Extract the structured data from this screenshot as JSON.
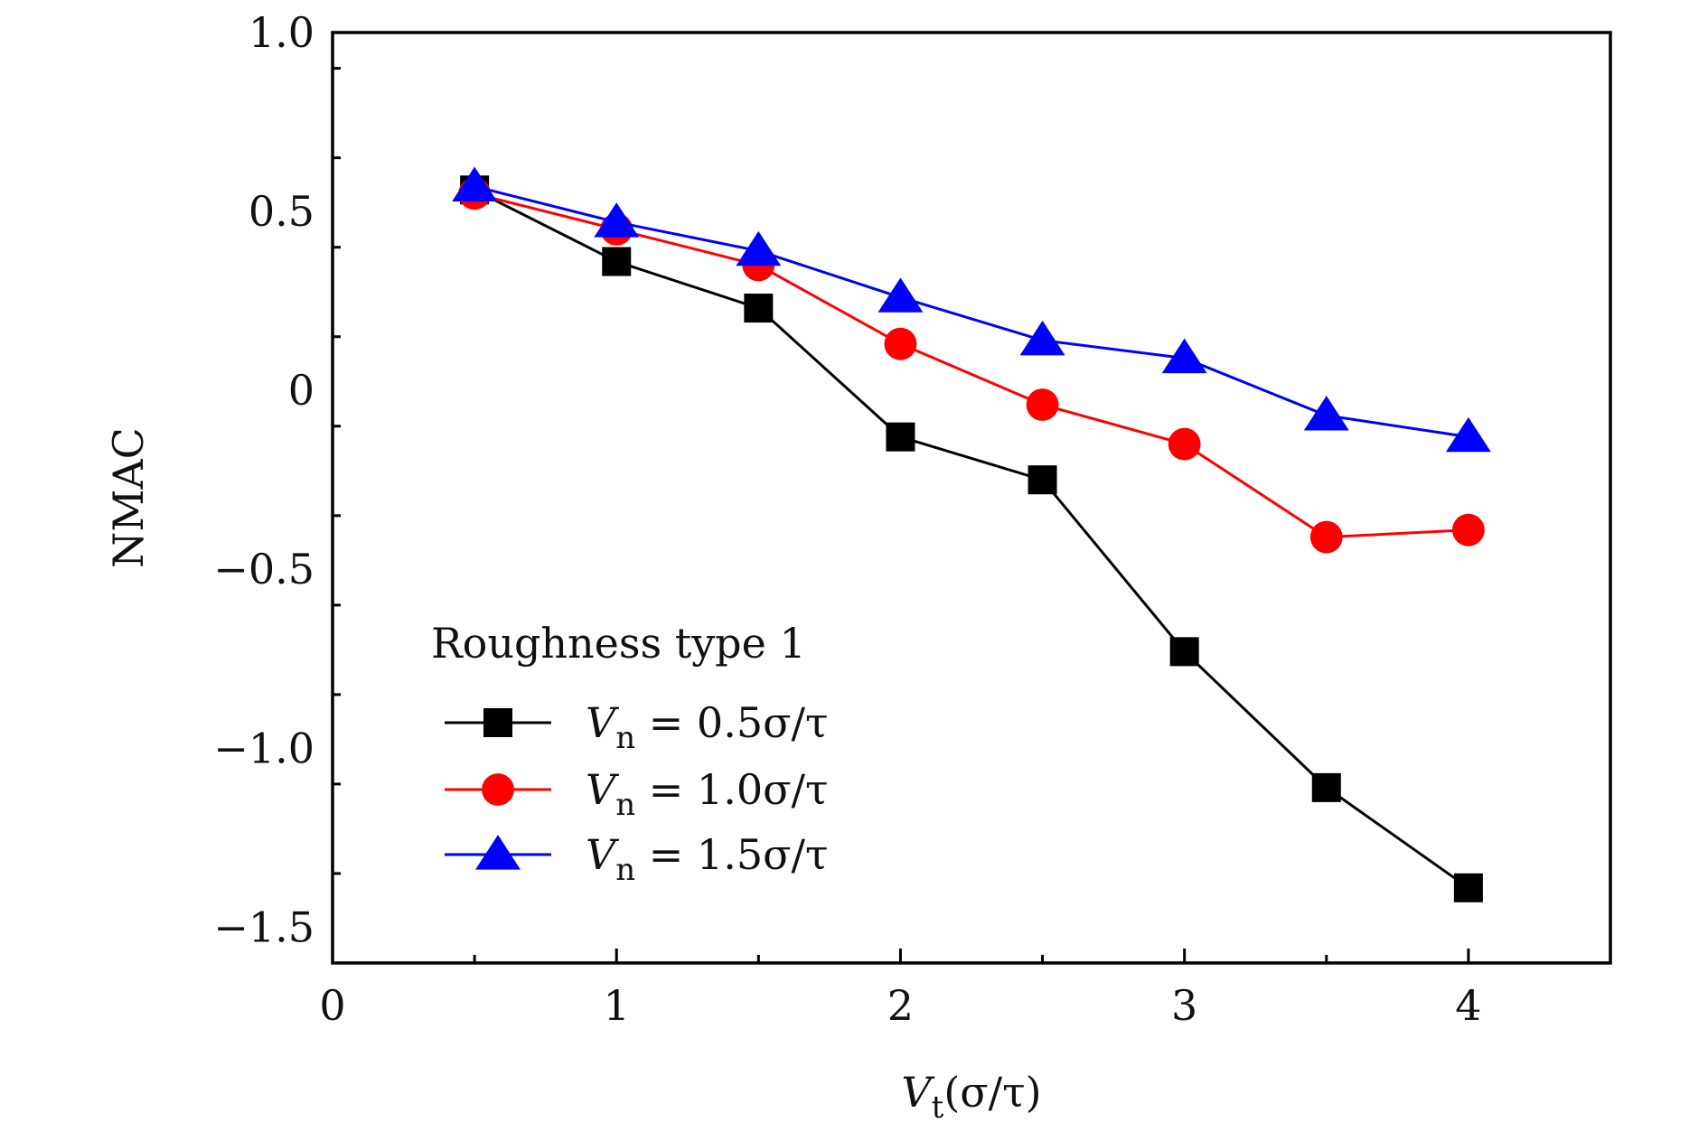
{
  "chart_data": {
    "type": "line",
    "title": "",
    "x_label": {
      "main": "V",
      "sub": "t",
      "rest": "(σ/τ)"
    },
    "y_label": "NMAC",
    "xlim": [
      0,
      4.5
    ],
    "ylim": [
      -1.6,
      1.0
    ],
    "x_ticks": [
      0,
      1,
      2,
      3,
      4
    ],
    "x_tick_labels": [
      "0",
      "1",
      "2",
      "3",
      "4"
    ],
    "y_ticks": [
      -1.5,
      -1.0,
      -0.5,
      0,
      0.5,
      1.0
    ],
    "y_tick_labels": [
      "−1.5",
      "−1.0",
      "−0.5",
      "0",
      "0.5",
      "1.0"
    ],
    "x_minor_step": 0.5,
    "y_minor_step": 0.25,
    "grid": false,
    "legend_title": "Roughness type 1",
    "legend_position": "lower-left",
    "x": [
      0.5,
      1.0,
      1.5,
      2.0,
      2.5,
      3.0,
      3.5,
      4.0
    ],
    "series": [
      {
        "name": {
          "main": "V",
          "sub": "n",
          "rest": " = 0.5σ/τ"
        },
        "marker": "square",
        "color": "#000000",
        "values": [
          0.56,
          0.36,
          0.23,
          -0.13,
          -0.25,
          -0.73,
          -1.11,
          -1.39
        ]
      },
      {
        "name": {
          "main": "V",
          "sub": "n",
          "rest": " = 1.0σ/τ"
        },
        "marker": "circle",
        "color": "#ff0000",
        "values": [
          0.55,
          0.45,
          0.35,
          0.13,
          -0.04,
          -0.15,
          -0.41,
          -0.39
        ]
      },
      {
        "name": {
          "main": "V",
          "sub": "n",
          "rest": " = 1.5σ/τ"
        },
        "marker": "triangle",
        "color": "#0000ff",
        "values": [
          0.57,
          0.47,
          0.39,
          0.26,
          0.14,
          0.09,
          -0.07,
          -0.13
        ]
      }
    ]
  }
}
